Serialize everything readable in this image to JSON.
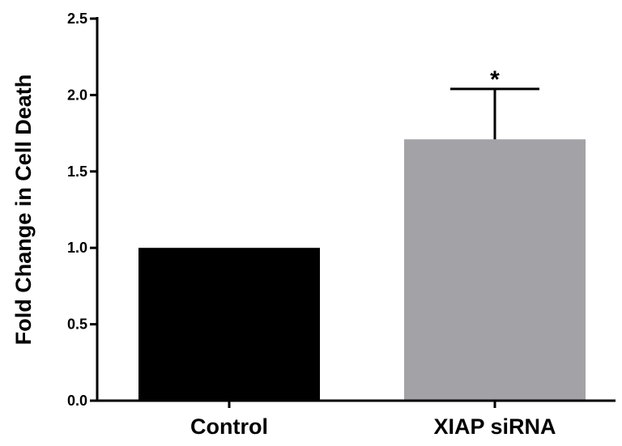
{
  "chart_data": {
    "type": "bar",
    "title": "",
    "xlabel": "",
    "ylabel": "Fold Change in Cell Death",
    "ylim": [
      0,
      2.5
    ],
    "yticks": [
      0.0,
      0.5,
      1.0,
      1.5,
      2.0,
      2.5
    ],
    "ytick_labels": [
      "0.0",
      "0.5",
      "1.0",
      "1.5",
      "2.0",
      "2.5"
    ],
    "categories": [
      "Control",
      "XIAP siRNA"
    ],
    "values": [
      1.0,
      1.71
    ],
    "error_upper": [
      0,
      0.33
    ],
    "bar_colors": [
      "#000000",
      "#a3a3a7"
    ],
    "annotations": [
      {
        "category": "XIAP siRNA",
        "text": "*"
      }
    ],
    "grid": false,
    "legend": "none"
  }
}
